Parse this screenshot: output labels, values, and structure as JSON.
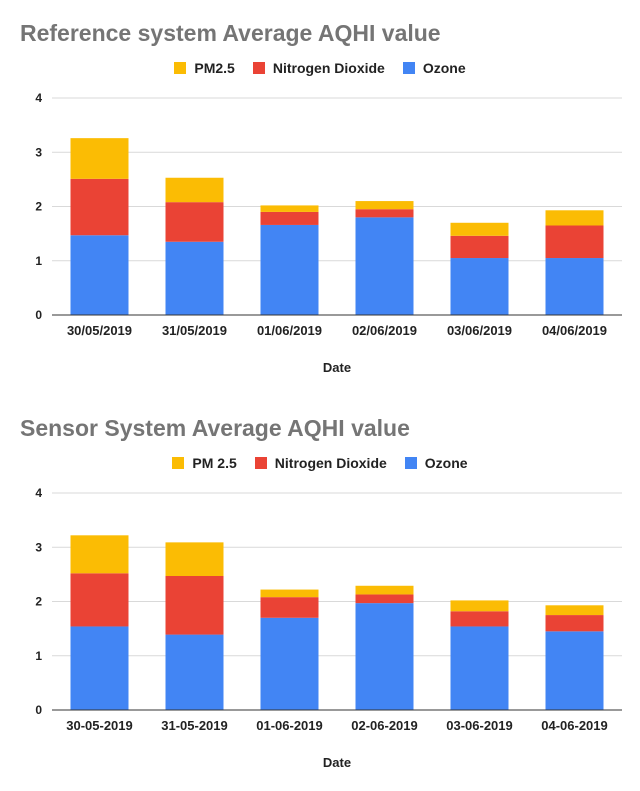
{
  "colors": {
    "pm25": "#fbbc04",
    "no2": "#ea4335",
    "ozone": "#4285f4"
  },
  "chart_data": [
    {
      "type": "bar",
      "stacked": true,
      "title": "Reference system Average AQHI value",
      "xlabel": "Date",
      "ylabel": "",
      "ylim": [
        0,
        4
      ],
      "yticks": [
        "0",
        "1",
        "2",
        "3",
        "4"
      ],
      "grid": true,
      "legend_position": "top",
      "categories": [
        "30/05/2019",
        "31/05/2019",
        "01/06/2019",
        "02/06/2019",
        "03/06/2019",
        "04/06/2019"
      ],
      "series": [
        {
          "name": "PM2.5",
          "color_key": "pm25",
          "values": [
            0.75,
            0.45,
            0.12,
            0.15,
            0.24,
            0.28
          ]
        },
        {
          "name": "Nitrogen Dioxide",
          "color_key": "no2",
          "values": [
            1.04,
            0.73,
            0.24,
            0.15,
            0.41,
            0.6
          ]
        },
        {
          "name": "Ozone",
          "color_key": "ozone",
          "values": [
            1.47,
            1.35,
            1.66,
            1.8,
            1.05,
            1.05
          ]
        }
      ],
      "legend_order": [
        0,
        1,
        2
      ]
    },
    {
      "type": "bar",
      "stacked": true,
      "title": "Sensor System Average AQHI value",
      "xlabel": "Date",
      "ylabel": "",
      "ylim": [
        0,
        4
      ],
      "yticks": [
        "0",
        "1",
        "2",
        "3",
        "4"
      ],
      "grid": true,
      "legend_position": "top",
      "categories": [
        "30-05-2019",
        "31-05-2019",
        "01-06-2019",
        "02-06-2019",
        "03-06-2019",
        "04-06-2019"
      ],
      "series": [
        {
          "name": "PM 2.5",
          "color_key": "pm25",
          "values": [
            0.7,
            0.62,
            0.14,
            0.16,
            0.2,
            0.18
          ]
        },
        {
          "name": "Nitrogen Dioxide",
          "color_key": "no2",
          "values": [
            0.98,
            1.08,
            0.38,
            0.16,
            0.28,
            0.3
          ]
        },
        {
          "name": "Ozone",
          "color_key": "ozone",
          "values": [
            1.54,
            1.39,
            1.7,
            1.97,
            1.54,
            1.45
          ]
        }
      ],
      "legend_order": [
        0,
        1,
        2
      ]
    }
  ]
}
